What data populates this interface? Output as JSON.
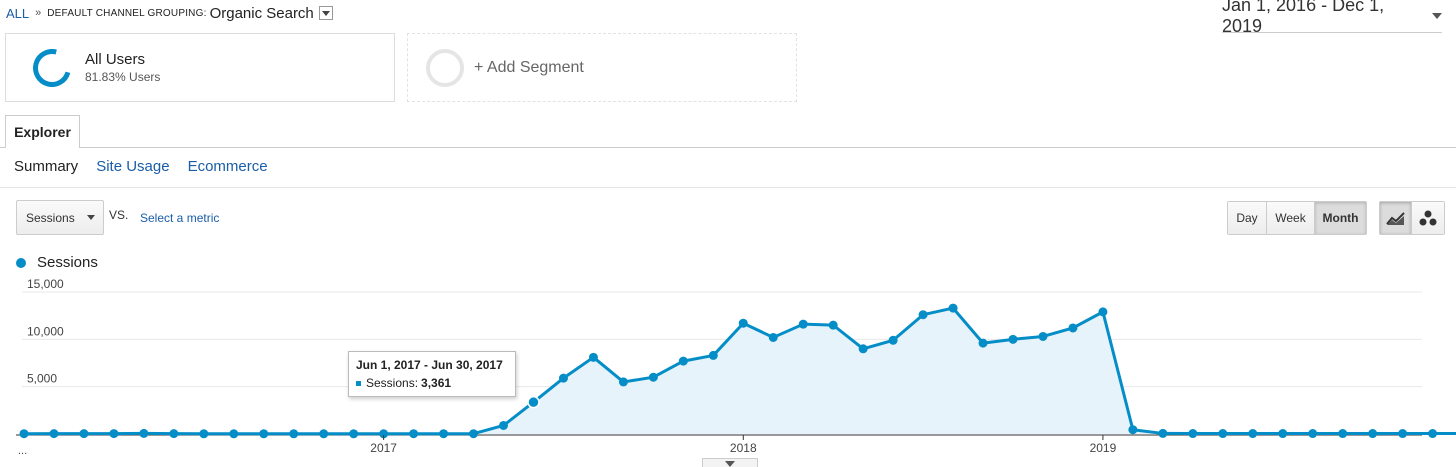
{
  "breadcrumb": {
    "root": "ALL",
    "separator": "»",
    "dimension": "DEFAULT CHANNEL GROUPING:",
    "value": "Organic Search"
  },
  "date_range": "Jan 1, 2016 - Dec 1, 2019",
  "segments": [
    {
      "title": "All Users",
      "subtitle": "81.83% Users"
    },
    {
      "title": "+ Add Segment"
    }
  ],
  "tabs": {
    "explorer": "Explorer"
  },
  "subtabs": [
    "Summary",
    "Site Usage",
    "Ecommerce"
  ],
  "metric": {
    "selected": "Sessions",
    "vs": "VS.",
    "compare": "Select a metric"
  },
  "period": {
    "day": "Day",
    "week": "Week",
    "month": "Month",
    "active": "Month"
  },
  "view_icons": [
    "line-chart-icon",
    "motion-chart-icon"
  ],
  "colors": {
    "series": "#058dc7",
    "area": "#e6f3fa",
    "link": "#1a5da8"
  },
  "tooltip": {
    "title": "Jun 1, 2017 - Jun 30, 2017",
    "label": "Sessions:",
    "value": "3,361"
  },
  "chart_data": {
    "type": "area",
    "legend": "Sessions",
    "interval": "month",
    "x_start": "2016-01",
    "ylim": [
      0,
      15000
    ],
    "y_ticks": [
      {
        "value": 15000,
        "label": "15,000"
      },
      {
        "value": 10000,
        "label": "10,000"
      },
      {
        "value": 5000,
        "label": "5,000"
      }
    ],
    "x_ticks": [
      {
        "index": 12,
        "label": "2017"
      },
      {
        "index": 24,
        "label": "2018"
      },
      {
        "index": 36,
        "label": "2019"
      }
    ],
    "x_start_label": "...",
    "series": [
      {
        "name": "Sessions",
        "values": [
          30,
          40,
          40,
          45,
          60,
          40,
          25,
          20,
          20,
          20,
          20,
          20,
          20,
          30,
          30,
          30,
          900,
          3361,
          5900,
          8100,
          5500,
          6000,
          7700,
          8300,
          11700,
          10200,
          11600,
          11500,
          9000,
          9900,
          12600,
          13300,
          9600,
          10000,
          10300,
          11200,
          12900,
          450,
          60,
          50,
          50,
          50,
          50,
          50,
          50,
          50,
          50,
          50,
          50
        ]
      }
    ],
    "highlight_index": 17
  }
}
